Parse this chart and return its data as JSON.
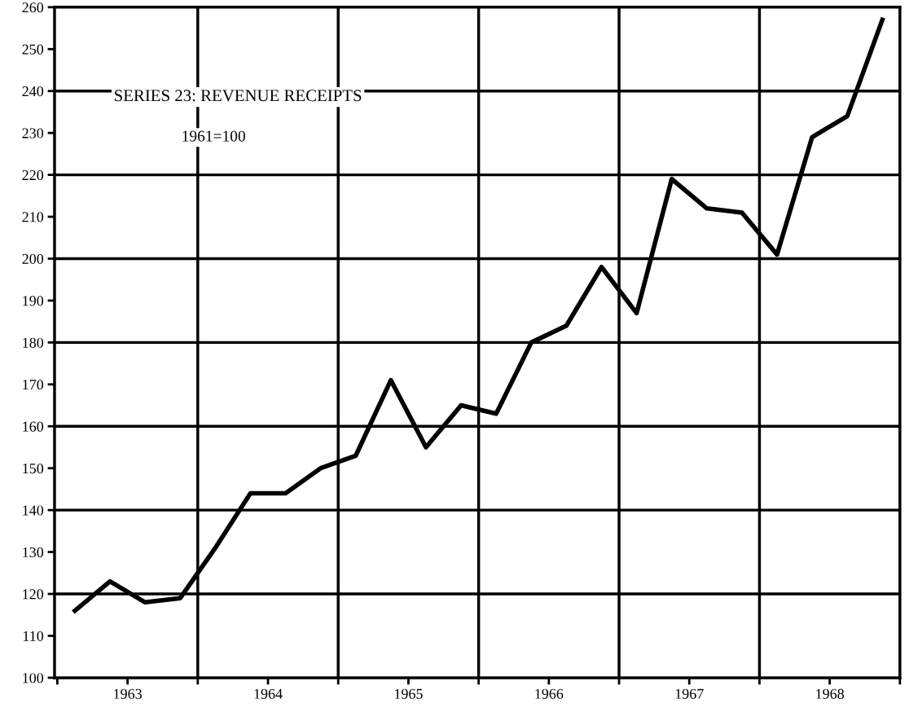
{
  "chart_data": {
    "type": "line",
    "title": "SERIES 23: REVENUE RECEIPTS",
    "subtitle": "1961=100",
    "x": [
      1963.125,
      1963.375,
      1963.625,
      1963.875,
      1964.125,
      1964.375,
      1964.625,
      1964.875,
      1965.125,
      1965.375,
      1965.625,
      1965.875,
      1966.125,
      1966.375,
      1966.625,
      1966.875,
      1967.125,
      1967.375,
      1967.625,
      1967.875,
      1968.125,
      1968.375,
      1968.625,
      1968.875
    ],
    "series": [
      {
        "color": "#000000",
        "values": [
          116,
          123,
          118,
          119,
          131,
          144,
          144,
          150,
          153,
          171,
          155,
          165,
          163,
          180,
          184,
          198,
          187,
          219,
          212,
          211,
          201,
          229,
          234,
          257
        ]
      }
    ],
    "xlim": [
      1962.98,
      1969.0
    ],
    "ylim": [
      100,
      260
    ],
    "xticks": [
      {
        "value": 1963,
        "label": null
      },
      {
        "value": 1963.5,
        "label": "1963"
      },
      {
        "value": 1964,
        "label": null
      },
      {
        "value": 1964.5,
        "label": "1964"
      },
      {
        "value": 1965,
        "label": null
      },
      {
        "value": 1965.5,
        "label": "1965"
      },
      {
        "value": 1966,
        "label": null
      },
      {
        "value": 1966.5,
        "label": "1966"
      },
      {
        "value": 1967,
        "label": null
      },
      {
        "value": 1967.5,
        "label": "1967"
      },
      {
        "value": 1968,
        "label": null
      },
      {
        "value": 1968.5,
        "label": "1968"
      },
      {
        "value": 1969,
        "label": null
      }
    ],
    "yticks": [
      100,
      110,
      120,
      130,
      140,
      150,
      160,
      170,
      180,
      190,
      200,
      210,
      220,
      230,
      240,
      250,
      260
    ],
    "grid": false,
    "marker": "none",
    "line_style": "solid",
    "legend": false,
    "ref_lines": [
      {
        "axis": "y",
        "value": 120
      },
      {
        "axis": "y",
        "value": 140
      },
      {
        "axis": "y",
        "value": 160
      },
      {
        "axis": "y",
        "value": 180
      },
      {
        "axis": "y",
        "value": 200
      },
      {
        "axis": "y",
        "value": 220
      },
      {
        "axis": "y",
        "value": 240
      },
      {
        "axis": "x",
        "value": 1964
      },
      {
        "axis": "x",
        "value": 1965
      },
      {
        "axis": "x",
        "value": 1966
      },
      {
        "axis": "x",
        "value": 1967
      },
      {
        "axis": "x",
        "value": 1968
      }
    ]
  }
}
